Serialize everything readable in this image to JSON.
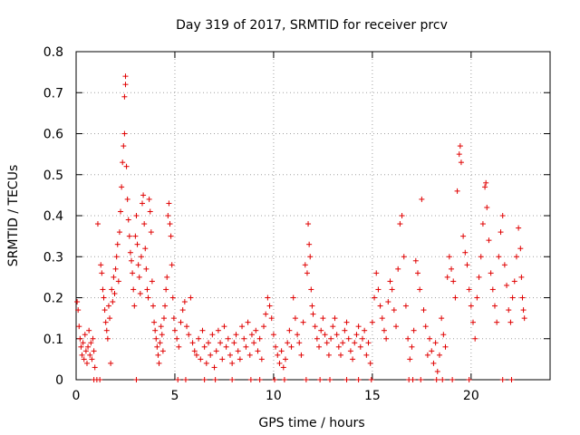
{
  "chart_data": {
    "type": "scatter",
    "title": "Day 319 of 2017, SRMTID for receiver prcv",
    "xlabel": "GPS time / hours",
    "ylabel": "SRMTID / TECUs",
    "xlim": [
      0,
      24
    ],
    "ylim": [
      0,
      0.8
    ],
    "x_ticks": [
      0,
      5,
      10,
      15,
      20
    ],
    "y_ticks": [
      0,
      0.1,
      0.2,
      0.3,
      0.4,
      0.5,
      0.6,
      0.7,
      0.8
    ],
    "x_tick_labels": [
      "0",
      "5",
      "10",
      "15",
      "20"
    ],
    "y_tick_labels": [
      "0",
      "0.1",
      "0.2",
      "0.3",
      "0.4",
      "0.5",
      "0.6",
      "0.7",
      "0.8"
    ],
    "grid": true,
    "marker": "plus",
    "color": "#e00000",
    "series": [
      {
        "name": "SRMTID",
        "points": [
          [
            0.05,
            0.19
          ],
          [
            0.1,
            0.17
          ],
          [
            0.15,
            0.13
          ],
          [
            0.2,
            0.1
          ],
          [
            0.25,
            0.08
          ],
          [
            0.3,
            0.06
          ],
          [
            0.35,
            0.09
          ],
          [
            0.4,
            0.05
          ],
          [
            0.45,
            0.11
          ],
          [
            0.5,
            0.07
          ],
          [
            0.55,
            0.04
          ],
          [
            0.6,
            0.08
          ],
          [
            0.65,
            0.12
          ],
          [
            0.7,
            0.06
          ],
          [
            0.75,
            0.09
          ],
          [
            0.8,
            0.05
          ],
          [
            0.85,
            0.1
          ],
          [
            0.9,
            0.07
          ],
          [
            0.95,
            0.03
          ],
          [
            1.1,
            0.38
          ],
          [
            1.25,
            0.28
          ],
          [
            1.3,
            0.26
          ],
          [
            1.35,
            0.22
          ],
          [
            1.4,
            0.2
          ],
          [
            1.45,
            0.17
          ],
          [
            1.5,
            0.14
          ],
          [
            1.55,
            0.12
          ],
          [
            1.6,
            0.1
          ],
          [
            1.65,
            0.18
          ],
          [
            1.7,
            0.15
          ],
          [
            1.75,
            0.04
          ],
          [
            1.8,
            0.22
          ],
          [
            1.85,
            0.19
          ],
          [
            1.9,
            0.25
          ],
          [
            1.95,
            0.21
          ],
          [
            2.0,
            0.27
          ],
          [
            2.05,
            0.3
          ],
          [
            2.1,
            0.33
          ],
          [
            2.15,
            0.24
          ],
          [
            2.2,
            0.36
          ],
          [
            2.25,
            0.41
          ],
          [
            2.3,
            0.47
          ],
          [
            2.35,
            0.53
          ],
          [
            2.4,
            0.57
          ],
          [
            2.45,
            0.6
          ],
          [
            2.45,
            0.69
          ],
          [
            2.5,
            0.72
          ],
          [
            2.5,
            0.74
          ],
          [
            2.55,
            0.52
          ],
          [
            2.6,
            0.44
          ],
          [
            2.65,
            0.39
          ],
          [
            2.7,
            0.35
          ],
          [
            2.75,
            0.31
          ],
          [
            2.8,
            0.29
          ],
          [
            2.85,
            0.26
          ],
          [
            2.9,
            0.22
          ],
          [
            2.95,
            0.18
          ],
          [
            3.0,
            0.35
          ],
          [
            3.05,
            0.4
          ],
          [
            3.1,
            0.33
          ],
          [
            3.15,
            0.28
          ],
          [
            3.2,
            0.25
          ],
          [
            3.25,
            0.21
          ],
          [
            3.3,
            0.3
          ],
          [
            3.35,
            0.43
          ],
          [
            3.4,
            0.45
          ],
          [
            3.45,
            0.38
          ],
          [
            3.5,
            0.32
          ],
          [
            3.55,
            0.27
          ],
          [
            3.6,
            0.22
          ],
          [
            3.65,
            0.2
          ],
          [
            3.7,
            0.44
          ],
          [
            3.75,
            0.41
          ],
          [
            3.8,
            0.36
          ],
          [
            3.85,
            0.24
          ],
          [
            3.9,
            0.18
          ],
          [
            3.95,
            0.14
          ],
          [
            4.0,
            0.12
          ],
          [
            4.05,
            0.1
          ],
          [
            4.1,
            0.08
          ],
          [
            4.15,
            0.06
          ],
          [
            4.2,
            0.04
          ],
          [
            4.25,
            0.09
          ],
          [
            4.3,
            0.13
          ],
          [
            4.35,
            0.11
          ],
          [
            4.4,
            0.07
          ],
          [
            4.45,
            0.15
          ],
          [
            4.5,
            0.18
          ],
          [
            4.55,
            0.22
          ],
          [
            4.6,
            0.25
          ],
          [
            4.65,
            0.4
          ],
          [
            4.7,
            0.43
          ],
          [
            4.75,
            0.38
          ],
          [
            4.8,
            0.35
          ],
          [
            4.85,
            0.28
          ],
          [
            4.9,
            0.2
          ],
          [
            4.95,
            0.15
          ],
          [
            5.0,
            0.12
          ],
          [
            5.1,
            0.1
          ],
          [
            5.2,
            0.08
          ],
          [
            5.3,
            0.14
          ],
          [
            5.4,
            0.17
          ],
          [
            5.5,
            0.19
          ],
          [
            5.6,
            0.13
          ],
          [
            5.7,
            0.11
          ],
          [
            5.8,
            0.2
          ],
          [
            5.9,
            0.09
          ],
          [
            6.0,
            0.07
          ],
          [
            6.1,
            0.06
          ],
          [
            6.2,
            0.1
          ],
          [
            6.3,
            0.05
          ],
          [
            6.4,
            0.12
          ],
          [
            6.5,
            0.08
          ],
          [
            6.6,
            0.04
          ],
          [
            6.7,
            0.09
          ],
          [
            6.8,
            0.06
          ],
          [
            6.9,
            0.11
          ],
          [
            7.0,
            0.03
          ],
          [
            7.1,
            0.07
          ],
          [
            7.2,
            0.12
          ],
          [
            7.3,
            0.09
          ],
          [
            7.4,
            0.05
          ],
          [
            7.5,
            0.13
          ],
          [
            7.6,
            0.08
          ],
          [
            7.7,
            0.1
          ],
          [
            7.8,
            0.06
          ],
          [
            7.9,
            0.04
          ],
          [
            8.0,
            0.09
          ],
          [
            8.1,
            0.11
          ],
          [
            8.2,
            0.07
          ],
          [
            8.3,
            0.05
          ],
          [
            8.4,
            0.13
          ],
          [
            8.5,
            0.1
          ],
          [
            8.6,
            0.08
          ],
          [
            8.7,
            0.14
          ],
          [
            8.8,
            0.06
          ],
          [
            8.9,
            0.11
          ],
          [
            9.0,
            0.09
          ],
          [
            9.1,
            0.12
          ],
          [
            9.2,
            0.07
          ],
          [
            9.3,
            0.1
          ],
          [
            9.4,
            0.05
          ],
          [
            9.5,
            0.13
          ],
          [
            9.6,
            0.16
          ],
          [
            9.7,
            0.2
          ],
          [
            9.8,
            0.18
          ],
          [
            9.9,
            0.15
          ],
          [
            10.0,
            0.11
          ],
          [
            10.1,
            0.08
          ],
          [
            10.2,
            0.06
          ],
          [
            10.3,
            0.04
          ],
          [
            10.4,
            0.07
          ],
          [
            10.5,
            0.03
          ],
          [
            10.6,
            0.05
          ],
          [
            10.7,
            0.09
          ],
          [
            10.8,
            0.12
          ],
          [
            10.9,
            0.08
          ],
          [
            11.0,
            0.2
          ],
          [
            11.1,
            0.15
          ],
          [
            11.2,
            0.11
          ],
          [
            11.3,
            0.09
          ],
          [
            11.4,
            0.06
          ],
          [
            11.5,
            0.14
          ],
          [
            11.6,
            0.28
          ],
          [
            11.7,
            0.26
          ],
          [
            11.75,
            0.38
          ],
          [
            11.8,
            0.33
          ],
          [
            11.85,
            0.3
          ],
          [
            11.9,
            0.22
          ],
          [
            11.95,
            0.18
          ],
          [
            12.0,
            0.16
          ],
          [
            12.1,
            0.13
          ],
          [
            12.2,
            0.1
          ],
          [
            12.3,
            0.08
          ],
          [
            12.4,
            0.12
          ],
          [
            12.5,
            0.15
          ],
          [
            12.6,
            0.11
          ],
          [
            12.7,
            0.09
          ],
          [
            12.8,
            0.06
          ],
          [
            12.9,
            0.1
          ],
          [
            13.0,
            0.13
          ],
          [
            13.1,
            0.15
          ],
          [
            13.2,
            0.11
          ],
          [
            13.3,
            0.08
          ],
          [
            13.4,
            0.06
          ],
          [
            13.5,
            0.09
          ],
          [
            13.6,
            0.12
          ],
          [
            13.7,
            0.14
          ],
          [
            13.8,
            0.1
          ],
          [
            13.9,
            0.07
          ],
          [
            14.0,
            0.05
          ],
          [
            14.1,
            0.09
          ],
          [
            14.2,
            0.11
          ],
          [
            14.3,
            0.13
          ],
          [
            14.4,
            0.08
          ],
          [
            14.5,
            0.1
          ],
          [
            14.6,
            0.12
          ],
          [
            14.7,
            0.06
          ],
          [
            14.8,
            0.09
          ],
          [
            14.9,
            0.04
          ],
          [
            15.0,
            0.14
          ],
          [
            15.1,
            0.2
          ],
          [
            15.2,
            0.26
          ],
          [
            15.3,
            0.22
          ],
          [
            15.4,
            0.18
          ],
          [
            15.5,
            0.15
          ],
          [
            15.6,
            0.12
          ],
          [
            15.7,
            0.1
          ],
          [
            15.8,
            0.19
          ],
          [
            15.9,
            0.24
          ],
          [
            16.0,
            0.22
          ],
          [
            16.1,
            0.17
          ],
          [
            16.2,
            0.13
          ],
          [
            16.3,
            0.27
          ],
          [
            16.4,
            0.38
          ],
          [
            16.5,
            0.4
          ],
          [
            16.6,
            0.3
          ],
          [
            16.7,
            0.18
          ],
          [
            16.8,
            0.1
          ],
          [
            16.9,
            0.05
          ],
          [
            17.0,
            0.08
          ],
          [
            17.1,
            0.12
          ],
          [
            17.2,
            0.29
          ],
          [
            17.3,
            0.26
          ],
          [
            17.4,
            0.22
          ],
          [
            17.5,
            0.44
          ],
          [
            17.6,
            0.17
          ],
          [
            17.7,
            0.13
          ],
          [
            17.8,
            0.06
          ],
          [
            17.9,
            0.1
          ],
          [
            18.0,
            0.07
          ],
          [
            18.1,
            0.04
          ],
          [
            18.2,
            0.09
          ],
          [
            18.3,
            0.02
          ],
          [
            18.4,
            0.06
          ],
          [
            18.5,
            0.15
          ],
          [
            18.6,
            0.11
          ],
          [
            18.7,
            0.08
          ],
          [
            18.8,
            0.25
          ],
          [
            18.9,
            0.3
          ],
          [
            19.0,
            0.27
          ],
          [
            19.1,
            0.24
          ],
          [
            19.2,
            0.2
          ],
          [
            19.3,
            0.46
          ],
          [
            19.4,
            0.55
          ],
          [
            19.45,
            0.57
          ],
          [
            19.5,
            0.53
          ],
          [
            19.6,
            0.35
          ],
          [
            19.7,
            0.31
          ],
          [
            19.8,
            0.28
          ],
          [
            19.9,
            0.22
          ],
          [
            20.0,
            0.18
          ],
          [
            20.1,
            0.14
          ],
          [
            20.2,
            0.1
          ],
          [
            20.3,
            0.2
          ],
          [
            20.4,
            0.25
          ],
          [
            20.5,
            0.3
          ],
          [
            20.6,
            0.38
          ],
          [
            20.7,
            0.47
          ],
          [
            20.75,
            0.48
          ],
          [
            20.8,
            0.42
          ],
          [
            20.9,
            0.34
          ],
          [
            21.0,
            0.26
          ],
          [
            21.1,
            0.22
          ],
          [
            21.2,
            0.18
          ],
          [
            21.3,
            0.14
          ],
          [
            21.4,
            0.3
          ],
          [
            21.5,
            0.36
          ],
          [
            21.6,
            0.4
          ],
          [
            21.7,
            0.28
          ],
          [
            21.8,
            0.23
          ],
          [
            21.9,
            0.17
          ],
          [
            22.0,
            0.14
          ],
          [
            22.1,
            0.2
          ],
          [
            22.2,
            0.24
          ],
          [
            22.3,
            0.3
          ],
          [
            22.4,
            0.37
          ],
          [
            22.5,
            0.32
          ],
          [
            22.55,
            0.25
          ],
          [
            22.6,
            0.2
          ],
          [
            22.65,
            0.17
          ],
          [
            22.7,
            0.15
          ]
        ],
        "zero_points": [
          0.9,
          1.05,
          1.2,
          3.05,
          5.15,
          5.55,
          6.5,
          7.05,
          7.9,
          8.85,
          9.3,
          10.05,
          10.55,
          11.65,
          12.35,
          12.85,
          13.7,
          14.3,
          14.95,
          16.85,
          17.05,
          17.45,
          18.25,
          18.55,
          19.05,
          19.9,
          21.6,
          22.05
        ]
      }
    ]
  }
}
